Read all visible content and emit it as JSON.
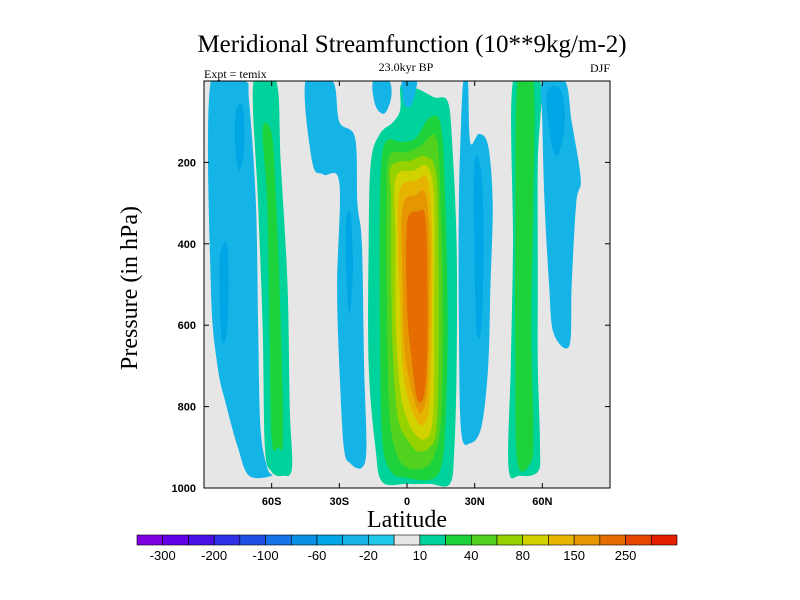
{
  "chart_data": {
    "type": "contour",
    "title": "Meridional Streamfunction (10**9kg/m-2)",
    "subtitle_left": "Expt = temix",
    "subtitle_center": "23.0kyr BP",
    "subtitle_right": "DJF",
    "xlabel": "Latitude",
    "ylabel": "Pressure (in hPa)",
    "xlim": [
      -90,
      90
    ],
    "ylim": [
      0,
      1000
    ],
    "y_inverted": true,
    "x_ticks": [
      {
        "value": -60,
        "label": "60S"
      },
      {
        "value": -30,
        "label": "30S"
      },
      {
        "value": 0,
        "label": "0"
      },
      {
        "value": 30,
        "label": "30N"
      },
      {
        "value": 60,
        "label": "60N"
      }
    ],
    "y_ticks": [
      {
        "value": 200,
        "label": "200"
      },
      {
        "value": 400,
        "label": "400"
      },
      {
        "value": 600,
        "label": "600"
      },
      {
        "value": 800,
        "label": "800"
      },
      {
        "value": 1000,
        "label": "1000"
      }
    ],
    "background_color": "#e6e6e6",
    "colorbar": {
      "levels": [
        -400,
        -300,
        -250,
        -200,
        -150,
        -100,
        -80,
        -60,
        -40,
        -20,
        -10,
        10,
        20,
        40,
        60,
        80,
        100,
        150,
        200,
        250,
        300
      ],
      "labeled_ticks": [
        {
          "index": 1,
          "label": "-300"
        },
        {
          "index": 3,
          "label": "-200"
        },
        {
          "index": 5,
          "label": "-100"
        },
        {
          "index": 7,
          "label": "-60"
        },
        {
          "index": 9,
          "label": "-20"
        },
        {
          "index": 11,
          "label": "10"
        },
        {
          "index": 13,
          "label": "40"
        },
        {
          "index": 15,
          "label": "80"
        },
        {
          "index": 17,
          "label": "150"
        },
        {
          "index": 19,
          "label": "250"
        }
      ],
      "colors": [
        "#7e00e0",
        "#6200e6",
        "#4a10e6",
        "#2f2fe6",
        "#1e50e6",
        "#1473e6",
        "#0a8fe6",
        "#00a5e6",
        "#14b4e6",
        "#1ec8e6",
        "#e6e6e6",
        "#00d29b",
        "#1ed23c",
        "#50d21e",
        "#96d200",
        "#d2d200",
        "#e6b400",
        "#e69600",
        "#e66e00",
        "#e64600",
        "#e61e00"
      ]
    },
    "cells": [
      {
        "name": "sh-polar-blue-outer",
        "level": 8,
        "points": [
          [
            -87,
            0
          ],
          [
            -72,
            0
          ],
          [
            -70,
            50
          ],
          [
            -67,
            300
          ],
          [
            -66,
            600
          ],
          [
            -65,
            850
          ],
          [
            -62,
            950
          ],
          [
            -60,
            970
          ],
          [
            -70,
            970
          ],
          [
            -75,
            900
          ],
          [
            -80,
            800
          ],
          [
            -84,
            700
          ],
          [
            -87,
            500
          ]
        ]
      },
      {
        "name": "sh-polar-blue-inner",
        "level": 7,
        "points": [
          [
            -83,
            430
          ],
          [
            -80,
            400
          ],
          [
            -79,
            500
          ],
          [
            -80,
            620
          ],
          [
            -82,
            640
          ],
          [
            -83,
            550
          ]
        ]
      },
      {
        "name": "sh-polar-blue-core",
        "level": 7,
        "points": [
          [
            -76,
            80
          ],
          [
            -73,
            60
          ],
          [
            -72,
            150
          ],
          [
            -74,
            220
          ],
          [
            -76,
            170
          ]
        ]
      },
      {
        "name": "sh-ferrel-outer",
        "level": 11,
        "points": [
          [
            -68,
            0
          ],
          [
            -58,
            0
          ],
          [
            -56,
            200
          ],
          [
            -53,
            500
          ],
          [
            -52,
            800
          ],
          [
            -51,
            950
          ],
          [
            -55,
            970
          ],
          [
            -60,
            960
          ],
          [
            -63,
            900
          ],
          [
            -64,
            600
          ],
          [
            -66,
            300
          ]
        ]
      },
      {
        "name": "sh-ferrel-inner",
        "level": 12,
        "points": [
          [
            -64,
            120
          ],
          [
            -60,
            130
          ],
          [
            -58,
            300
          ],
          [
            -56,
            600
          ],
          [
            -55,
            880
          ],
          [
            -57,
            900
          ],
          [
            -60,
            880
          ],
          [
            -61,
            600
          ],
          [
            -62,
            300
          ]
        ]
      },
      {
        "name": "sh-subtropical-blue",
        "level": 8,
        "points": [
          [
            -45,
            0
          ],
          [
            -33,
            0
          ],
          [
            -30,
            100
          ],
          [
            -23,
            140
          ],
          [
            -22,
            300
          ],
          [
            -20,
            400
          ],
          [
            -19,
            700
          ],
          [
            -18,
            900
          ],
          [
            -20,
            950
          ],
          [
            -25,
            940
          ],
          [
            -28,
            900
          ],
          [
            -30,
            700
          ],
          [
            -31,
            500
          ],
          [
            -30,
            250
          ],
          [
            -37,
            230
          ],
          [
            -42,
            200
          ]
        ]
      },
      {
        "name": "sh-subtropical-core",
        "level": 7,
        "points": [
          [
            -27,
            340
          ],
          [
            -25,
            330
          ],
          [
            -24,
            450
          ],
          [
            -25,
            560
          ],
          [
            -26,
            560
          ],
          [
            -27,
            450
          ]
        ]
      },
      {
        "name": "hadley-10",
        "level": 11,
        "points": [
          [
            -3,
            15
          ],
          [
            -1,
            12
          ],
          [
            5,
            20
          ],
          [
            12,
            40
          ],
          [
            18,
            50
          ],
          [
            20,
            150
          ],
          [
            22,
            400
          ],
          [
            22,
            700
          ],
          [
            21,
            900
          ],
          [
            19,
            990
          ],
          [
            10,
            990
          ],
          [
            0,
            990
          ],
          [
            -11,
            985
          ],
          [
            -14,
            900
          ],
          [
            -17,
            700
          ],
          [
            -17,
            400
          ],
          [
            -16,
            200
          ],
          [
            -12,
            130
          ],
          [
            -6,
            100
          ],
          [
            -3,
            70
          ]
        ]
      },
      {
        "name": "hadley-20",
        "level": 12,
        "points": [
          [
            -10,
            155
          ],
          [
            -2,
            150
          ],
          [
            4,
            140
          ],
          [
            10,
            90
          ],
          [
            15,
            110
          ],
          [
            17,
            300
          ],
          [
            18,
            600
          ],
          [
            17,
            850
          ],
          [
            15,
            950
          ],
          [
            10,
            980
          ],
          [
            0,
            975
          ],
          [
            -7,
            960
          ],
          [
            -11,
            880
          ],
          [
            -12,
            600
          ],
          [
            -12,
            300
          ]
        ]
      },
      {
        "name": "hadley-40",
        "level": 13,
        "points": [
          [
            -8,
            185
          ],
          [
            0,
            175
          ],
          [
            6,
            160
          ],
          [
            13,
            140
          ],
          [
            15,
            320
          ],
          [
            16,
            600
          ],
          [
            15,
            840
          ],
          [
            12,
            920
          ],
          [
            8,
            950
          ],
          [
            0,
            950
          ],
          [
            -5,
            910
          ],
          [
            -8,
            800
          ],
          [
            -9,
            500
          ],
          [
            -9,
            300
          ]
        ]
      },
      {
        "name": "hadley-60",
        "level": 14,
        "points": [
          [
            -7,
            210
          ],
          [
            2,
            195
          ],
          [
            8,
            185
          ],
          [
            13,
            230
          ],
          [
            14,
            450
          ],
          [
            14,
            700
          ],
          [
            13,
            860
          ],
          [
            10,
            900
          ],
          [
            5,
            910
          ],
          [
            0,
            880
          ],
          [
            -4,
            830
          ],
          [
            -6,
            700
          ],
          [
            -7,
            500
          ],
          [
            -7,
            300
          ]
        ]
      },
      {
        "name": "hadley-80",
        "level": 15,
        "points": [
          [
            -5,
            240
          ],
          [
            3,
            220
          ],
          [
            9,
            210
          ],
          [
            12,
            290
          ],
          [
            12,
            550
          ],
          [
            12,
            750
          ],
          [
            11,
            850
          ],
          [
            8,
            880
          ],
          [
            4,
            870
          ],
          [
            0,
            830
          ],
          [
            -3,
            760
          ],
          [
            -5,
            600
          ],
          [
            -5,
            400
          ]
        ]
      },
      {
        "name": "hadley-100",
        "level": 16,
        "points": [
          [
            -3,
            265
          ],
          [
            4,
            245
          ],
          [
            9,
            240
          ],
          [
            11,
            360
          ],
          [
            11,
            600
          ],
          [
            10,
            790
          ],
          [
            8,
            840
          ],
          [
            5,
            840
          ],
          [
            1,
            790
          ],
          [
            -2,
            700
          ],
          [
            -3,
            550
          ],
          [
            -4,
            400
          ]
        ]
      },
      {
        "name": "hadley-150",
        "level": 17,
        "points": [
          [
            -2,
            310
          ],
          [
            4,
            280
          ],
          [
            8,
            275
          ],
          [
            10,
            380
          ],
          [
            10,
            600
          ],
          [
            9,
            760
          ],
          [
            7,
            810
          ],
          [
            5,
            810
          ],
          [
            2,
            760
          ],
          [
            -1,
            660
          ],
          [
            -2,
            500
          ]
        ]
      },
      {
        "name": "hadley-200",
        "level": 18,
        "points": [
          [
            0,
            350
          ],
          [
            5,
            320
          ],
          [
            8,
            330
          ],
          [
            9,
            450
          ],
          [
            9,
            650
          ],
          [
            8,
            760
          ],
          [
            6,
            790
          ],
          [
            4,
            770
          ],
          [
            2,
            680
          ],
          [
            0,
            560
          ]
        ]
      },
      {
        "name": "nh-blue-cell",
        "level": 8,
        "points": [
          [
            25,
            0
          ],
          [
            27,
            0
          ],
          [
            28,
            150
          ],
          [
            32,
            130
          ],
          [
            36,
            160
          ],
          [
            38,
            300
          ],
          [
            37,
            500
          ],
          [
            36,
            700
          ],
          [
            33,
            850
          ],
          [
            28,
            890
          ],
          [
            24,
            860
          ],
          [
            23,
            600
          ],
          [
            23,
            300
          ],
          [
            24,
            100
          ]
        ]
      },
      {
        "name": "nh-blue-core",
        "level": 7,
        "points": [
          [
            30,
            200
          ],
          [
            33,
            230
          ],
          [
            34,
            400
          ],
          [
            33,
            600
          ],
          [
            31,
            620
          ],
          [
            30,
            450
          ]
        ]
      },
      {
        "name": "nh-ferrel-outer",
        "level": 11,
        "points": [
          [
            47,
            0
          ],
          [
            59,
            0
          ],
          [
            58,
            200
          ],
          [
            58,
            500
          ],
          [
            58,
            700
          ],
          [
            59,
            900
          ],
          [
            58,
            960
          ],
          [
            50,
            970
          ],
          [
            45,
            950
          ],
          [
            46,
            700
          ],
          [
            47,
            400
          ]
        ]
      },
      {
        "name": "nh-ferrel-inner",
        "level": 12,
        "points": [
          [
            49,
            0
          ],
          [
            56,
            0
          ],
          [
            56,
            300
          ],
          [
            55,
            600
          ],
          [
            56,
            850
          ],
          [
            55,
            935
          ],
          [
            49,
            940
          ],
          [
            48,
            700
          ],
          [
            48,
            400
          ]
        ]
      },
      {
        "name": "nh-polar-blue",
        "level": 8,
        "points": [
          [
            60,
            0
          ],
          [
            70,
            0
          ],
          [
            73,
            100
          ],
          [
            77,
            240
          ],
          [
            75,
            300
          ],
          [
            73,
            500
          ],
          [
            72,
            650
          ],
          [
            65,
            620
          ],
          [
            63,
            500
          ],
          [
            61,
            300
          ],
          [
            60,
            100
          ]
        ]
      },
      {
        "name": "nh-polar-core",
        "level": 7,
        "points": [
          [
            62,
            30
          ],
          [
            68,
            20
          ],
          [
            70,
            100
          ],
          [
            67,
            180
          ],
          [
            64,
            150
          ]
        ]
      },
      {
        "name": "upper-blue-1",
        "level": 8,
        "points": [
          [
            -2,
            0
          ],
          [
            4,
            0
          ],
          [
            4,
            20
          ],
          [
            2,
            60
          ],
          [
            -1,
            60
          ],
          [
            -2,
            30
          ]
        ]
      },
      {
        "name": "upper-blue-2",
        "level": 8,
        "points": [
          [
            -15,
            0
          ],
          [
            -8,
            0
          ],
          [
            -7,
            40
          ],
          [
            -10,
            80
          ],
          [
            -14,
            60
          ]
        ]
      }
    ]
  }
}
